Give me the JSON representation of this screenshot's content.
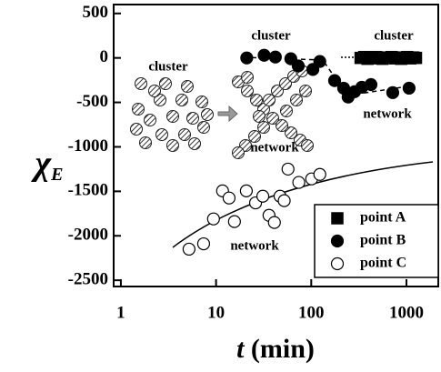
{
  "chart_data": {
    "type": "scatter",
    "xlabel_var": "t",
    "xlabel_unit": "(min)",
    "ylabel": "χ",
    "ylabel_sub": "E",
    "xscale": "log",
    "xlim": [
      0.84,
      2160
    ],
    "ylim": [
      -2570,
      600
    ],
    "xticks": [
      1,
      10,
      100,
      1000
    ],
    "yticks": [
      500,
      0,
      -500,
      -1000,
      -1500,
      -2000,
      -2500
    ],
    "legend": "lower right",
    "annotations": [
      "cluster",
      "cluster",
      "cluster",
      "network",
      "network",
      "network"
    ],
    "series": [
      {
        "name": "point A",
        "marker": "square",
        "color": "#000000",
        "fill": "#000000",
        "x": [
          330,
          360,
          390,
          420,
          450,
          480,
          520,
          560,
          600,
          650,
          700,
          760,
          820,
          880,
          950,
          1020,
          1100,
          1180,
          1260
        ],
        "values": [
          0,
          10,
          -10,
          5,
          -5,
          10,
          0,
          -10,
          5,
          0,
          10,
          -5,
          5,
          -10,
          0,
          10,
          -5,
          5,
          0
        ]
      },
      {
        "name": "point B",
        "marker": "circle",
        "color": "#000000",
        "fill": "#000000",
        "x": [
          21,
          32,
          42,
          61,
          73,
          104,
          123,
          176,
          219,
          244,
          285,
          340,
          424,
          718,
          1066
        ],
        "values": [
          0,
          30,
          10,
          -10,
          -90,
          -130,
          -40,
          -255,
          -340,
          -440,
          -380,
          -330,
          -300,
          -390,
          -340
        ]
      },
      {
        "name": "point C",
        "marker": "circle",
        "color": "#000000",
        "fill": "#ffffff",
        "x": [
          5.2,
          7.4,
          9.4,
          11.7,
          13.7,
          15.6,
          20.8,
          26,
          31,
          36,
          41,
          47,
          52,
          57,
          74,
          101,
          123
        ],
        "values": [
          -2150,
          -2090,
          -1810,
          -1495,
          -1575,
          -1840,
          -1495,
          -1630,
          -1555,
          -1770,
          -1850,
          -1555,
          -1605,
          -1250,
          -1400,
          -1360,
          -1310
        ]
      }
    ]
  }
}
